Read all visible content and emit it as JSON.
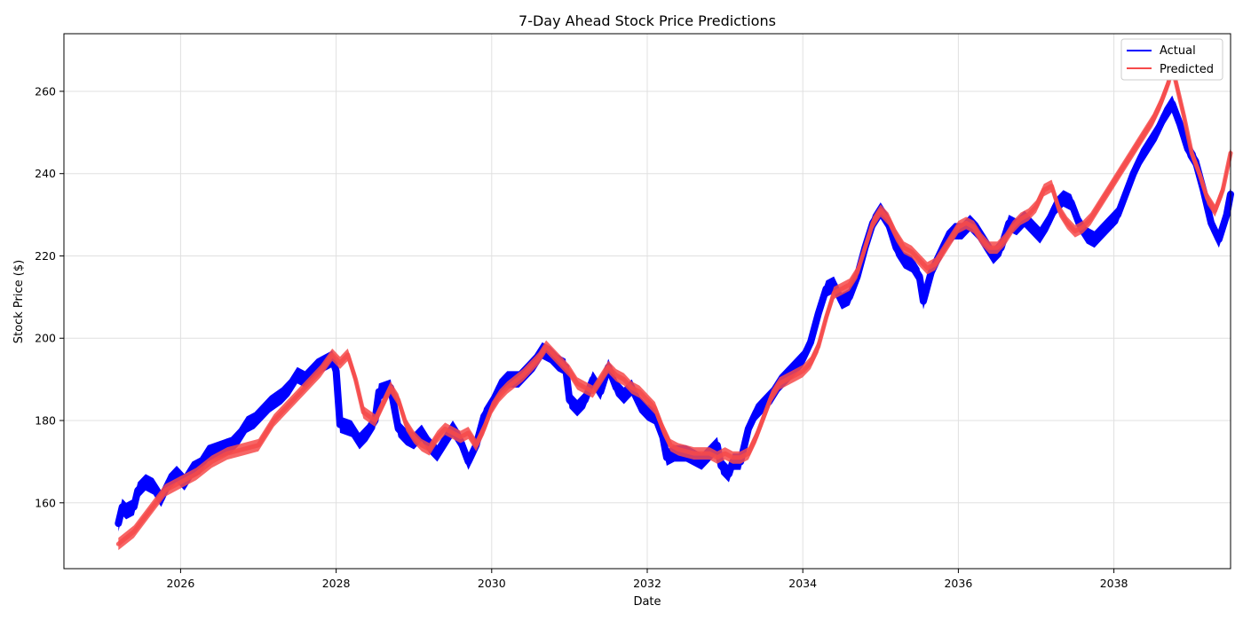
{
  "chart_data": {
    "type": "line",
    "title": "7-Day Ahead Stock Price Predictions",
    "xlabel": "Date",
    "ylabel": "Stock Price ($)",
    "xlim": [
      2024.5,
      2039.5
    ],
    "ylim": [
      144,
      274
    ],
    "x_ticks": [
      2026,
      2028,
      2030,
      2032,
      2034,
      2036,
      2038
    ],
    "y_ticks": [
      160,
      180,
      200,
      220,
      240,
      260
    ],
    "grid": true,
    "legend_position": "top-right",
    "series": [
      {
        "name": "Actual",
        "color": "#0000ff",
        "band": 4,
        "points": [
          [
            2025.2,
            155
          ],
          [
            2025.25,
            159
          ],
          [
            2025.3,
            158
          ],
          [
            2025.4,
            159
          ],
          [
            2025.45,
            163
          ],
          [
            2025.55,
            165
          ],
          [
            2025.65,
            164
          ],
          [
            2025.75,
            161
          ],
          [
            2025.85,
            165
          ],
          [
            2025.95,
            167
          ],
          [
            2026.05,
            165
          ],
          [
            2026.15,
            168
          ],
          [
            2026.25,
            169
          ],
          [
            2026.35,
            172
          ],
          [
            2026.5,
            173
          ],
          [
            2026.65,
            174
          ],
          [
            2026.75,
            176
          ],
          [
            2026.85,
            179
          ],
          [
            2026.95,
            180
          ],
          [
            2027.05,
            182
          ],
          [
            2027.15,
            184
          ],
          [
            2027.3,
            186
          ],
          [
            2027.4,
            188
          ],
          [
            2027.5,
            191
          ],
          [
            2027.6,
            190
          ],
          [
            2027.75,
            193
          ],
          [
            2027.85,
            194
          ],
          [
            2027.95,
            195
          ],
          [
            2028.0,
            192
          ],
          [
            2028.05,
            179
          ],
          [
            2028.2,
            178
          ],
          [
            2028.3,
            175
          ],
          [
            2028.4,
            177
          ],
          [
            2028.5,
            180
          ],
          [
            2028.55,
            187
          ],
          [
            2028.7,
            188
          ],
          [
            2028.8,
            178
          ],
          [
            2028.9,
            176
          ],
          [
            2029.0,
            175
          ],
          [
            2029.1,
            177
          ],
          [
            2029.2,
            174
          ],
          [
            2029.3,
            172
          ],
          [
            2029.4,
            175
          ],
          [
            2029.5,
            178
          ],
          [
            2029.6,
            175
          ],
          [
            2029.7,
            170
          ],
          [
            2029.8,
            174
          ],
          [
            2029.9,
            181
          ],
          [
            2030.0,
            184
          ],
          [
            2030.1,
            188
          ],
          [
            2030.2,
            190
          ],
          [
            2030.35,
            190
          ],
          [
            2030.45,
            192
          ],
          [
            2030.55,
            194
          ],
          [
            2030.65,
            197
          ],
          [
            2030.75,
            196
          ],
          [
            2030.85,
            194
          ],
          [
            2030.95,
            193
          ],
          [
            2031.0,
            185
          ],
          [
            2031.1,
            183
          ],
          [
            2031.2,
            185
          ],
          [
            2031.3,
            190
          ],
          [
            2031.4,
            187
          ],
          [
            2031.5,
            193
          ],
          [
            2031.6,
            188
          ],
          [
            2031.7,
            186
          ],
          [
            2031.8,
            188
          ],
          [
            2031.9,
            184
          ],
          [
            2032.0,
            182
          ],
          [
            2032.1,
            181
          ],
          [
            2032.2,
            176
          ],
          [
            2032.25,
            171
          ],
          [
            2032.35,
            172
          ],
          [
            2032.5,
            172
          ],
          [
            2032.6,
            171
          ],
          [
            2032.7,
            170
          ],
          [
            2032.8,
            172
          ],
          [
            2032.9,
            174
          ],
          [
            2032.95,
            169
          ],
          [
            2033.05,
            167
          ],
          [
            2033.1,
            170
          ],
          [
            2033.2,
            170
          ],
          [
            2033.3,
            178
          ],
          [
            2033.4,
            182
          ],
          [
            2033.5,
            184
          ],
          [
            2033.6,
            186
          ],
          [
            2033.7,
            189
          ],
          [
            2033.8,
            191
          ],
          [
            2033.9,
            193
          ],
          [
            2034.0,
            195
          ],
          [
            2034.1,
            199
          ],
          [
            2034.2,
            206
          ],
          [
            2034.3,
            212
          ],
          [
            2034.4,
            213
          ],
          [
            2034.5,
            209
          ],
          [
            2034.6,
            210
          ],
          [
            2034.7,
            215
          ],
          [
            2034.8,
            222
          ],
          [
            2034.9,
            228
          ],
          [
            2035.0,
            231
          ],
          [
            2035.1,
            228
          ],
          [
            2035.2,
            222
          ],
          [
            2035.3,
            219
          ],
          [
            2035.4,
            218
          ],
          [
            2035.5,
            215
          ],
          [
            2035.55,
            209
          ],
          [
            2035.65,
            216
          ],
          [
            2035.75,
            220
          ],
          [
            2035.85,
            224
          ],
          [
            2035.95,
            226
          ],
          [
            2036.05,
            226
          ],
          [
            2036.15,
            228
          ],
          [
            2036.25,
            226
          ],
          [
            2036.35,
            223
          ],
          [
            2036.45,
            220
          ],
          [
            2036.55,
            222
          ],
          [
            2036.65,
            228
          ],
          [
            2036.75,
            227
          ],
          [
            2036.85,
            229
          ],
          [
            2036.95,
            227
          ],
          [
            2037.05,
            225
          ],
          [
            2037.15,
            228
          ],
          [
            2037.25,
            232
          ],
          [
            2037.35,
            234
          ],
          [
            2037.45,
            233
          ],
          [
            2037.55,
            228
          ],
          [
            2037.65,
            225
          ],
          [
            2037.75,
            224
          ],
          [
            2037.85,
            226
          ],
          [
            2037.95,
            228
          ],
          [
            2038.05,
            230
          ],
          [
            2038.15,
            235
          ],
          [
            2038.25,
            240
          ],
          [
            2038.35,
            244
          ],
          [
            2038.45,
            247
          ],
          [
            2038.55,
            250
          ],
          [
            2038.65,
            254
          ],
          [
            2038.75,
            257
          ],
          [
            2038.85,
            252
          ],
          [
            2038.95,
            246
          ],
          [
            2039.05,
            243
          ],
          [
            2039.15,
            236
          ],
          [
            2039.25,
            228
          ],
          [
            2039.35,
            224
          ],
          [
            2039.45,
            230
          ],
          [
            2039.5,
            235
          ]
        ]
      },
      {
        "name": "Predicted",
        "color": "#f64a4a",
        "band": 3,
        "points": [
          [
            2025.2,
            150
          ],
          [
            2025.4,
            153
          ],
          [
            2025.6,
            158
          ],
          [
            2025.8,
            163
          ],
          [
            2026.0,
            165
          ],
          [
            2026.2,
            167
          ],
          [
            2026.4,
            170
          ],
          [
            2026.6,
            172
          ],
          [
            2026.8,
            173
          ],
          [
            2027.0,
            174
          ],
          [
            2027.2,
            180
          ],
          [
            2027.4,
            184
          ],
          [
            2027.6,
            188
          ],
          [
            2027.8,
            192
          ],
          [
            2027.95,
            196
          ],
          [
            2028.05,
            194
          ],
          [
            2028.15,
            196
          ],
          [
            2028.25,
            190
          ],
          [
            2028.35,
            182
          ],
          [
            2028.5,
            180
          ],
          [
            2028.6,
            184
          ],
          [
            2028.7,
            188
          ],
          [
            2028.8,
            185
          ],
          [
            2028.9,
            179
          ],
          [
            2029.0,
            176
          ],
          [
            2029.1,
            174
          ],
          [
            2029.2,
            173
          ],
          [
            2029.3,
            176
          ],
          [
            2029.4,
            178
          ],
          [
            2029.5,
            177
          ],
          [
            2029.6,
            176
          ],
          [
            2029.7,
            177
          ],
          [
            2029.8,
            174
          ],
          [
            2029.9,
            178
          ],
          [
            2030.0,
            183
          ],
          [
            2030.1,
            186
          ],
          [
            2030.2,
            188
          ],
          [
            2030.4,
            191
          ],
          [
            2030.6,
            195
          ],
          [
            2030.7,
            198
          ],
          [
            2030.8,
            196
          ],
          [
            2030.9,
            194
          ],
          [
            2031.0,
            192
          ],
          [
            2031.1,
            189
          ],
          [
            2031.2,
            188
          ],
          [
            2031.3,
            187
          ],
          [
            2031.4,
            190
          ],
          [
            2031.5,
            193
          ],
          [
            2031.6,
            191
          ],
          [
            2031.7,
            190
          ],
          [
            2031.8,
            188
          ],
          [
            2031.9,
            187
          ],
          [
            2032.0,
            185
          ],
          [
            2032.1,
            183
          ],
          [
            2032.2,
            178
          ],
          [
            2032.3,
            174
          ],
          [
            2032.4,
            173
          ],
          [
            2032.6,
            172
          ],
          [
            2032.8,
            172
          ],
          [
            2032.9,
            171
          ],
          [
            2033.0,
            172
          ],
          [
            2033.1,
            171
          ],
          [
            2033.2,
            171
          ],
          [
            2033.3,
            172
          ],
          [
            2033.4,
            176
          ],
          [
            2033.5,
            181
          ],
          [
            2033.6,
            186
          ],
          [
            2033.7,
            189
          ],
          [
            2033.8,
            190
          ],
          [
            2033.9,
            191
          ],
          [
            2034.0,
            192
          ],
          [
            2034.1,
            194
          ],
          [
            2034.2,
            198
          ],
          [
            2034.3,
            205
          ],
          [
            2034.4,
            211
          ],
          [
            2034.5,
            212
          ],
          [
            2034.6,
            213
          ],
          [
            2034.7,
            216
          ],
          [
            2034.8,
            222
          ],
          [
            2034.9,
            228
          ],
          [
            2035.0,
            231
          ],
          [
            2035.1,
            229
          ],
          [
            2035.2,
            225
          ],
          [
            2035.3,
            222
          ],
          [
            2035.4,
            221
          ],
          [
            2035.5,
            219
          ],
          [
            2035.6,
            217
          ],
          [
            2035.7,
            218
          ],
          [
            2035.8,
            221
          ],
          [
            2035.9,
            224
          ],
          [
            2036.0,
            227
          ],
          [
            2036.1,
            228
          ],
          [
            2036.2,
            227
          ],
          [
            2036.3,
            224
          ],
          [
            2036.4,
            222
          ],
          [
            2036.5,
            222
          ],
          [
            2036.6,
            224
          ],
          [
            2036.7,
            227
          ],
          [
            2036.8,
            229
          ],
          [
            2036.9,
            230
          ],
          [
            2037.0,
            232
          ],
          [
            2037.1,
            236
          ],
          [
            2037.2,
            237
          ],
          [
            2037.3,
            231
          ],
          [
            2037.4,
            228
          ],
          [
            2037.5,
            226
          ],
          [
            2037.6,
            227
          ],
          [
            2037.7,
            229
          ],
          [
            2037.8,
            232
          ],
          [
            2037.9,
            235
          ],
          [
            2038.0,
            238
          ],
          [
            2038.1,
            241
          ],
          [
            2038.2,
            244
          ],
          [
            2038.3,
            247
          ],
          [
            2038.4,
            250
          ],
          [
            2038.5,
            253
          ],
          [
            2038.6,
            257
          ],
          [
            2038.7,
            262
          ],
          [
            2038.75,
            266
          ],
          [
            2038.8,
            262
          ],
          [
            2038.9,
            254
          ],
          [
            2039.0,
            245
          ],
          [
            2039.1,
            240
          ],
          [
            2039.2,
            234
          ],
          [
            2039.3,
            231
          ],
          [
            2039.4,
            236
          ],
          [
            2039.5,
            245
          ]
        ]
      }
    ]
  }
}
